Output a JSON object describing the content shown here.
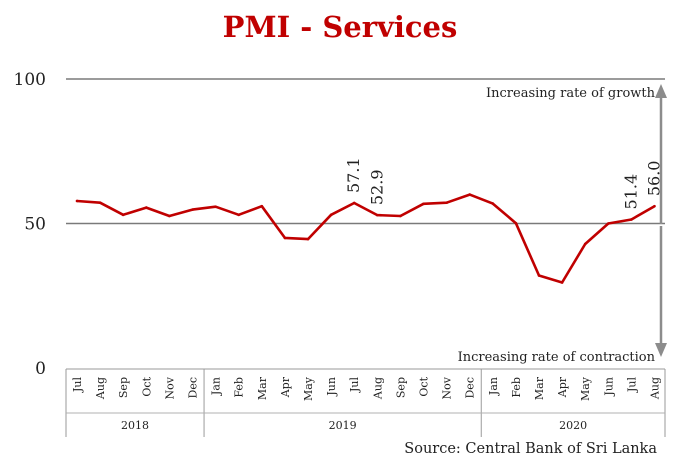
{
  "chart_data": {
    "type": "line",
    "title": "PMI - Services",
    "source": "Source: Central Bank of Sri Lanka",
    "ylim": [
      0,
      100
    ],
    "yticks": [
      0,
      50,
      100
    ],
    "annotations": {
      "growth": "Increasing rate of growth",
      "contraction": "Increasing rate of contraction"
    },
    "years": [
      {
        "label": "2018",
        "count": 6
      },
      {
        "label": "2019",
        "count": 12
      },
      {
        "label": "2020",
        "count": 8
      }
    ],
    "categories": [
      "Jul",
      "Aug",
      "Sep",
      "Oct",
      "Nov",
      "Dec",
      "Jan",
      "Feb",
      "Mar",
      "Apr",
      "May",
      "Jun",
      "Jul",
      "Aug",
      "Sep",
      "Oct",
      "Nov",
      "Dec",
      "Jan",
      "Feb",
      "Mar",
      "Apr",
      "May",
      "Jun",
      "Jul",
      "Aug"
    ],
    "series": [
      {
        "name": "PMI - Services",
        "color": "#c00000",
        "values": [
          57.8,
          57.2,
          53.0,
          55.5,
          52.6,
          54.8,
          55.8,
          53.0,
          56.0,
          45.0,
          44.6,
          53.0,
          57.1,
          52.9,
          52.6,
          56.8,
          57.2,
          60.0,
          56.9,
          50.1,
          32.0,
          29.6,
          42.9,
          50.0,
          51.4,
          56.0
        ],
        "labels": [
          {
            "index": 12,
            "text": "57.1"
          },
          {
            "index": 13,
            "text": "52.9"
          },
          {
            "index": 24,
            "text": "51.4"
          },
          {
            "index": 25,
            "text": "56.0"
          }
        ]
      }
    ]
  }
}
